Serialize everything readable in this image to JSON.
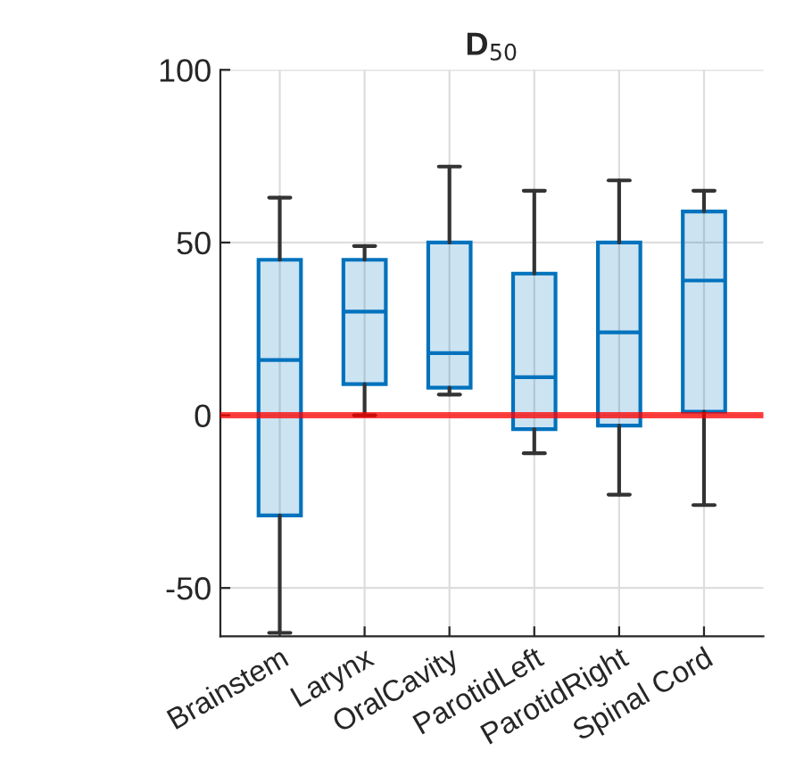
{
  "chart_data": {
    "type": "box",
    "title": "D$_{50}$",
    "categories": [
      "Brainstem",
      "Larynx",
      "OralCavity",
      "ParotidLeft",
      "ParotidRight",
      "Spinal Cord"
    ],
    "boxes": [
      {
        "low": -63,
        "q1": -29,
        "median": 16,
        "q3": 45,
        "high": 63
      },
      {
        "low": 0,
        "q1": 9,
        "median": 30,
        "q3": 45,
        "high": 49
      },
      {
        "low": 6,
        "q1": 8,
        "median": 18,
        "q3": 50,
        "high": 72
      },
      {
        "low": -11,
        "q1": -4,
        "median": 11,
        "q3": 41,
        "high": 65
      },
      {
        "low": -23,
        "q1": -3,
        "median": 24,
        "q3": 50,
        "high": 68
      },
      {
        "low": -26,
        "q1": 1,
        "median": 39,
        "q3": 59,
        "high": 65
      }
    ],
    "color": "#0072bd",
    "ylim": [
      -64,
      100
    ],
    "yticks": [
      -50,
      0,
      50,
      100
    ],
    "grid": true,
    "ref_lines": [
      {
        "axis": "y",
        "value": 0,
        "color": "#ff0000"
      }
    ]
  }
}
